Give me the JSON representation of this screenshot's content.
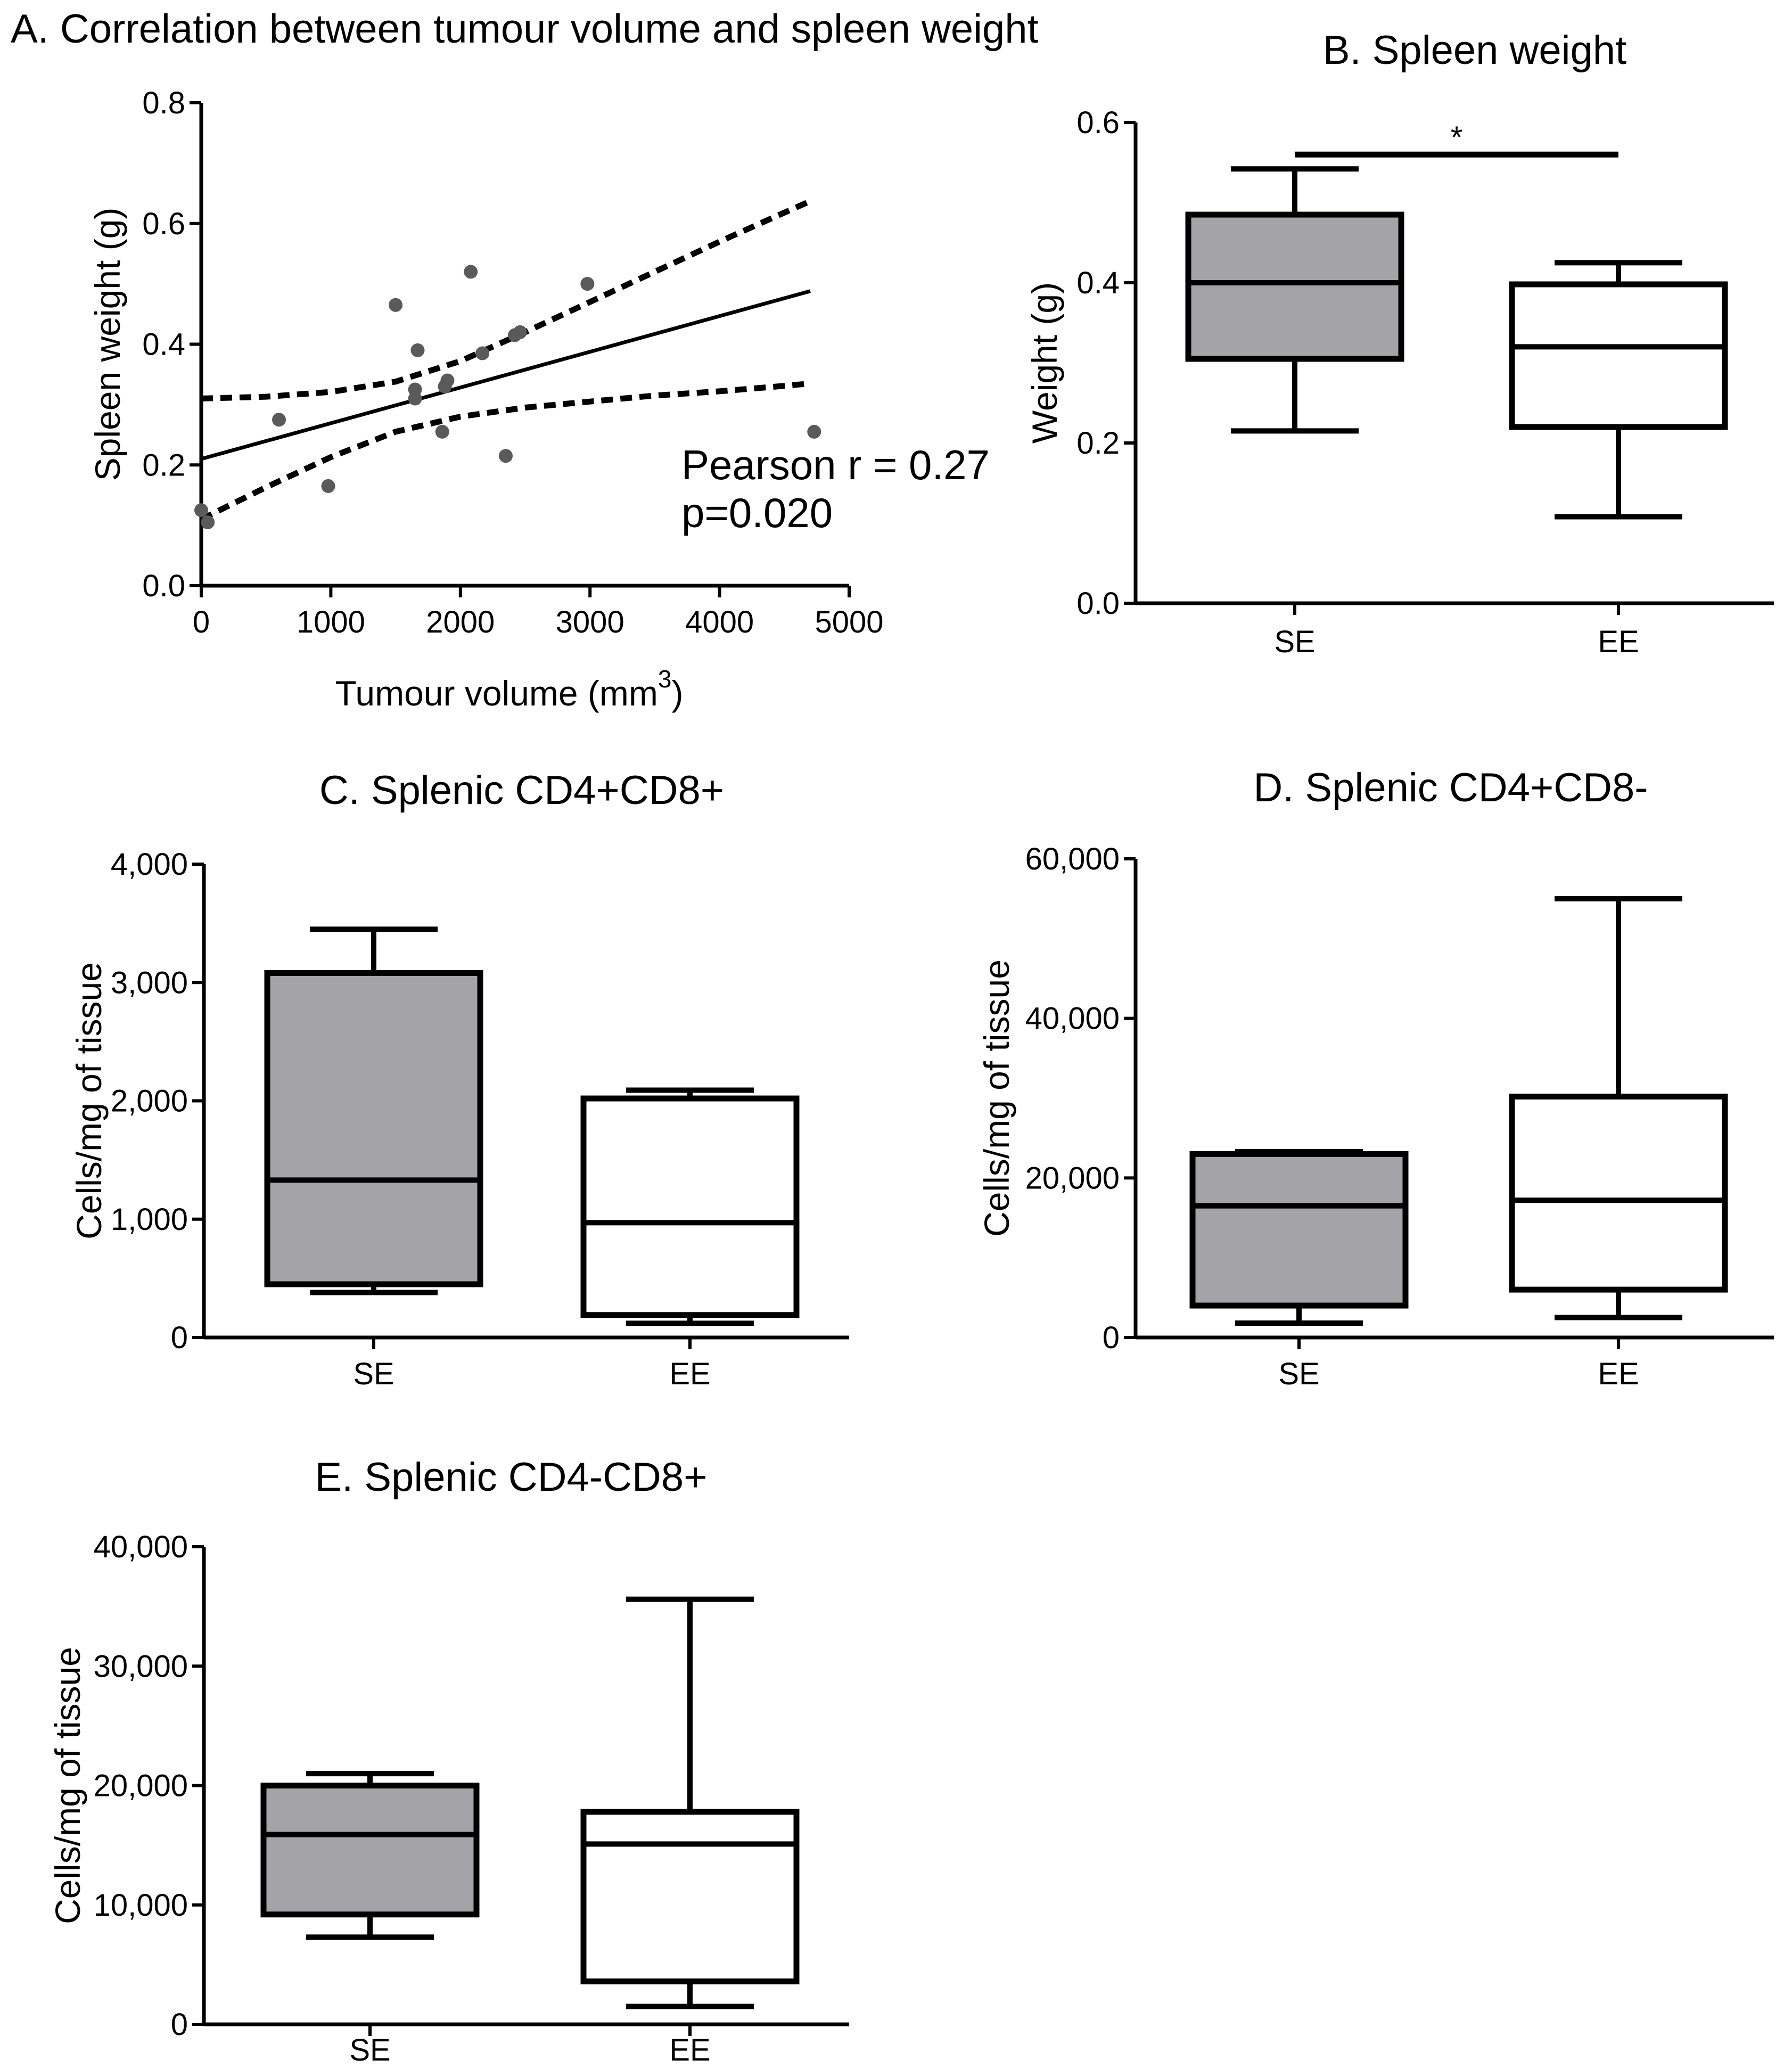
{
  "chart_data": [
    {
      "id": "A",
      "type": "scatter",
      "title": "A. Correlation between tumour volume and spleen weight",
      "xlabel": "Tumour volume (mm",
      "xlabel_sup": "3",
      "xlabel_suffix": ")",
      "ylabel": "Spleen weight (g)",
      "xlim": [
        0,
        5000
      ],
      "ylim": [
        0,
        0.8
      ],
      "xticks": [
        0,
        1000,
        2000,
        3000,
        4000,
        5000
      ],
      "xtick_labels": [
        "0",
        "1000",
        "2000",
        "3000",
        "4000",
        "5000"
      ],
      "yticks": [
        0,
        0.2,
        0.4,
        0.6,
        0.8
      ],
      "ytick_labels": [
        "0.0",
        "0.2",
        "0.4",
        "0.6",
        "0.8"
      ],
      "points": [
        {
          "x": 0,
          "y": 0.125
        },
        {
          "x": 50,
          "y": 0.105
        },
        {
          "x": 600,
          "y": 0.275
        },
        {
          "x": 980,
          "y": 0.165
        },
        {
          "x": 1500,
          "y": 0.465
        },
        {
          "x": 1650,
          "y": 0.31
        },
        {
          "x": 1650,
          "y": 0.325
        },
        {
          "x": 1670,
          "y": 0.39
        },
        {
          "x": 1860,
          "y": 0.255
        },
        {
          "x": 1880,
          "y": 0.33
        },
        {
          "x": 1900,
          "y": 0.34
        },
        {
          "x": 2080,
          "y": 0.52
        },
        {
          "x": 2170,
          "y": 0.385
        },
        {
          "x": 2350,
          "y": 0.215
        },
        {
          "x": 2420,
          "y": 0.415
        },
        {
          "x": 2460,
          "y": 0.42
        },
        {
          "x": 2980,
          "y": 0.5
        },
        {
          "x": 4730,
          "y": 0.255
        }
      ],
      "fit_line": {
        "x": [
          0,
          4700
        ],
        "y": [
          0.21,
          0.488
        ]
      },
      "ci_upper": {
        "x": [
          0,
          500,
          1000,
          1500,
          2000,
          2500,
          3000,
          3500,
          4000,
          4500,
          4700
        ],
        "y": [
          0.31,
          0.313,
          0.321,
          0.338,
          0.372,
          0.42,
          0.47,
          0.52,
          0.57,
          0.618,
          0.637
        ]
      },
      "ci_lower": {
        "x": [
          0,
          500,
          1000,
          1500,
          2000,
          2500,
          3000,
          3500,
          4000,
          4500,
          4700
        ],
        "y": [
          0.11,
          0.163,
          0.213,
          0.255,
          0.28,
          0.295,
          0.305,
          0.315,
          0.322,
          0.331,
          0.335
        ]
      },
      "annotation_line1": "Pearson r = 0.27",
      "annotation_line2": "p=0.020"
    },
    {
      "id": "B",
      "type": "box",
      "title": "B. Spleen weight",
      "ylabel": "Weight (g)",
      "ylim": [
        0,
        0.6
      ],
      "yticks": [
        0,
        0.2,
        0.4,
        0.6
      ],
      "ytick_labels": [
        "0.0",
        "0.2",
        "0.4",
        "0.6"
      ],
      "categories": [
        "SE",
        "EE"
      ],
      "boxes": [
        {
          "label": "SE",
          "min": 0.215,
          "q1": 0.305,
          "median": 0.4,
          "q3": 0.485,
          "max": 0.542,
          "fill": "#a3a3a8"
        },
        {
          "label": "EE",
          "min": 0.108,
          "q1": 0.22,
          "median": 0.32,
          "q3": 0.398,
          "max": 0.425,
          "fill": "#ffffff"
        }
      ],
      "significance": {
        "from": "SE",
        "to": "EE",
        "y": 0.56,
        "label": "*"
      }
    },
    {
      "id": "C",
      "type": "box",
      "title": "C. Splenic CD4+CD8+",
      "ylabel": "Cells/mg of tissue",
      "ylim": [
        0,
        4000
      ],
      "yticks": [
        0,
        1000,
        2000,
        3000,
        4000
      ],
      "ytick_labels": [
        "0",
        "1,000",
        "2,000",
        "3,000",
        "4,000"
      ],
      "categories": [
        "SE",
        "EE"
      ],
      "boxes": [
        {
          "label": "SE",
          "min": 380,
          "q1": 450,
          "median": 1330,
          "q3": 3080,
          "max": 3450,
          "fill": "#a3a3a8"
        },
        {
          "label": "EE",
          "min": 120,
          "q1": 190,
          "median": 970,
          "q3": 2020,
          "max": 2090,
          "fill": "#ffffff"
        }
      ]
    },
    {
      "id": "D",
      "type": "box",
      "title": "D. Splenic CD4+CD8-",
      "ylabel": "Cells/mg of tissue",
      "ylim": [
        0,
        60000
      ],
      "yticks": [
        0,
        20000,
        40000,
        60000
      ],
      "ytick_labels": [
        "0",
        "20,000",
        "40,000",
        "60,000"
      ],
      "categories": [
        "SE",
        "EE"
      ],
      "boxes": [
        {
          "label": "SE",
          "min": 1800,
          "q1": 4000,
          "median": 16500,
          "q3": 23000,
          "max": 23300,
          "fill": "#a3a3a8"
        },
        {
          "label": "EE",
          "min": 2500,
          "q1": 6000,
          "median": 17200,
          "q3": 30200,
          "max": 55000,
          "fill": "#ffffff"
        }
      ]
    },
    {
      "id": "E",
      "type": "box",
      "title": "E. Splenic CD4-CD8+",
      "ylabel": "Cells/mg of tissue",
      "ylim": [
        0,
        40000
      ],
      "yticks": [
        0,
        10000,
        20000,
        30000,
        40000
      ],
      "ytick_labels": [
        "0",
        "10,000",
        "20,000",
        "30,000",
        "40,000"
      ],
      "categories": [
        "SE",
        "EE"
      ],
      "boxes": [
        {
          "label": "SE",
          "min": 7300,
          "q1": 9200,
          "median": 15900,
          "q3": 20000,
          "max": 21000,
          "fill": "#a3a3a8"
        },
        {
          "label": "EE",
          "min": 1500,
          "q1": 3600,
          "median": 15100,
          "q3": 17800,
          "max": 35600,
          "fill": "#ffffff"
        }
      ]
    }
  ]
}
